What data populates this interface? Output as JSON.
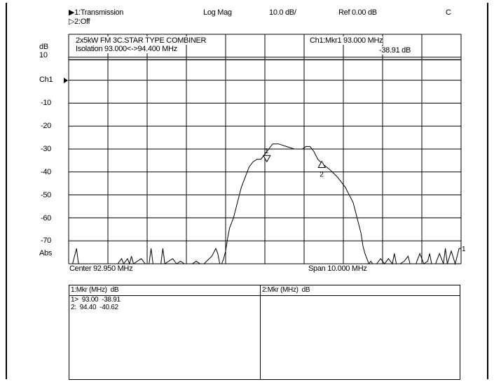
{
  "header": {
    "trace1": "▶1:Transmission",
    "trace2": "▷2:Off",
    "format": "Log Mag",
    "scale": "10.0 dB/",
    "ref": "Ref  0.00 dB",
    "channel_flag": "C"
  },
  "annotations": {
    "title_line1": "2x5kW FM 3C.STAR TYPE COMBINER",
    "title_line2": "Isolation 93.000<->94.400 MHz",
    "marker_label": "Ch1:Mkr1  93.000 MHz",
    "marker_value": "-38.91 dB"
  },
  "footer": {
    "center": "Center 92.950 MHz",
    "span": "Span 10.000 MHz"
  },
  "marker_table": {
    "left_header": "1:Mkr (MHz)  dB",
    "rows": [
      "1>  93.00  -38.91",
      "2:  94.40  -40.62"
    ],
    "right_header": "2:Mkr (MHz)  dB"
  },
  "chart_data": {
    "type": "line",
    "title": "2x5kW FM 3C.STAR TYPE COMBINER",
    "subtitle": "Isolation 93.000<->94.400 MHz",
    "xlabel": "",
    "ylabel": "dB",
    "xlim": [
      87.95,
      97.95
    ],
    "ylim": [
      -80,
      10
    ],
    "y_tick_labels": [
      "10",
      "Ch1",
      "-10",
      "-20",
      "-30",
      "-40",
      "-50",
      "-60",
      "-70",
      "Abs"
    ],
    "grid": true,
    "markers": [
      {
        "label": "1",
        "x": 93.0,
        "y": -38.91
      },
      {
        "label": "2",
        "x": 94.4,
        "y": -40.62
      }
    ],
    "series": [
      {
        "x": [
          87.95,
          88.05,
          88.15,
          88.2,
          88.27,
          88.33,
          88.4,
          88.6,
          88.8,
          89.0,
          89.2,
          89.3,
          89.35,
          89.4,
          89.45,
          89.5,
          89.55,
          89.6,
          89.7,
          89.8,
          89.9,
          90.0,
          90.05,
          90.1,
          90.2,
          90.3,
          90.35,
          90.4,
          90.6,
          90.7,
          90.8,
          90.9,
          91.0,
          91.1,
          91.2,
          91.3,
          91.4,
          91.6,
          91.7,
          91.75,
          91.8,
          91.85,
          91.9,
          91.95,
          92.0,
          92.05,
          92.15,
          92.25,
          92.35,
          92.45,
          92.55,
          92.65,
          92.75,
          92.85,
          92.95,
          93.05,
          93.15,
          93.3,
          93.5,
          93.7,
          93.9,
          94.0,
          94.1,
          94.2,
          94.3,
          94.4,
          94.6,
          94.8,
          95.0,
          95.2,
          95.3,
          95.4,
          95.45,
          95.5,
          95.55,
          95.6,
          95.65,
          95.7,
          95.8,
          95.9,
          96.0,
          96.1,
          96.2,
          96.25,
          96.3,
          96.4,
          96.5,
          96.6,
          96.65,
          96.7,
          96.8,
          96.9,
          97.0,
          97.1,
          97.15,
          97.2,
          97.3,
          97.4,
          97.5,
          97.55,
          97.6,
          97.7,
          97.8,
          97.85,
          97.9,
          97.95
        ],
        "values": [
          -80,
          -80,
          -74,
          -80,
          -80,
          -80,
          -80,
          -80,
          -80,
          -80,
          -80,
          -78,
          -80,
          -79,
          -78,
          -80,
          -77,
          -80,
          -79,
          -78,
          -80,
          -80,
          -74,
          -80,
          -80,
          -80,
          -74,
          -80,
          -78,
          -80,
          -79,
          -80,
          -80,
          -80,
          -79,
          -80,
          -80,
          -77,
          -74,
          -76,
          -80,
          -80,
          -78,
          -75,
          -70,
          -66,
          -62,
          -56,
          -50,
          -46,
          -42,
          -40,
          -39,
          -39,
          -37,
          -35,
          -33,
          -33,
          -34,
          -35,
          -35,
          -34,
          -34,
          -36,
          -39,
          -40.6,
          -43,
          -46,
          -50,
          -56,
          -62,
          -68,
          -73,
          -76,
          -78,
          -80,
          -79,
          -80,
          -80,
          -78,
          -80,
          -78,
          -80,
          -76,
          -80,
          -80,
          -79,
          -77,
          -80,
          -80,
          -80,
          -76,
          -80,
          -79,
          -76,
          -80,
          -80,
          -76,
          -80,
          -74,
          -80,
          -75,
          -80,
          -77,
          -74,
          -74
        ]
      }
    ]
  }
}
